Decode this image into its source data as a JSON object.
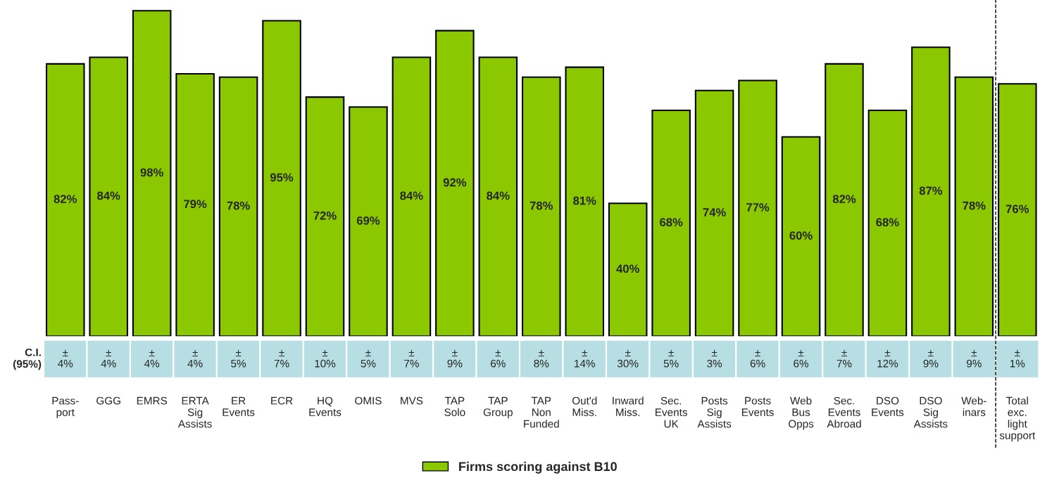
{
  "chart_data": {
    "type": "bar",
    "categories": [
      "Pass-\nport",
      "GGG",
      "EMRS",
      "ERTA\nSig\nAssists",
      "ER\nEvents",
      "ECR",
      "HQ\nEvents",
      "OMIS",
      "MVS",
      "TAP\nSolo",
      "TAP\nGroup",
      "TAP\nNon\nFunded",
      "Out'd\nMiss.",
      "Inward\nMiss.",
      "Sec.\nEvents\nUK",
      "Posts\nSig\nAssists",
      "Posts\nEvents",
      "Web\nBus\nOpps",
      "Sec.\nEvents\nAbroad",
      "DSO\nEvents",
      "DSO\nSig\nAssists",
      "Web-\ninars",
      "Total\nexc.\nlight\nsupport"
    ],
    "series": [
      {
        "name": "Firms scoring against B10",
        "color": "#8cc800",
        "values": [
          82,
          84,
          98,
          79,
          78,
          95,
          72,
          69,
          84,
          92,
          84,
          78,
          81,
          40,
          68,
          74,
          77,
          60,
          82,
          68,
          87,
          78,
          76
        ],
        "value_labels": [
          "82%",
          "84%",
          "98%",
          "79%",
          "78%",
          "95%",
          "72%",
          "69%",
          "84%",
          "92%",
          "84%",
          "78%",
          "81%",
          "40%",
          "68%",
          "74%",
          "77%",
          "60%",
          "82%",
          "68%",
          "87%",
          "78%",
          "76%"
        ]
      }
    ],
    "annotations": [
      "C.I.\n(95%)",
      "±\n4%",
      "±\n4%",
      "±\n4%",
      "±\n4%",
      "±\n5%",
      "±\n7%",
      "±\n10%",
      "±\n5%",
      "±\n7%",
      "±\n9%",
      "±\n6%",
      "±\n8%",
      "±\n14%",
      "±\n30%",
      "±\n5%",
      "±\n3%",
      "±\n6%",
      "±\n6%",
      "±\n7%",
      "±\n12%",
      "±\n9%",
      "±\n9%",
      "±\n1%"
    ],
    "legend": "bottom",
    "grid": false
  }
}
